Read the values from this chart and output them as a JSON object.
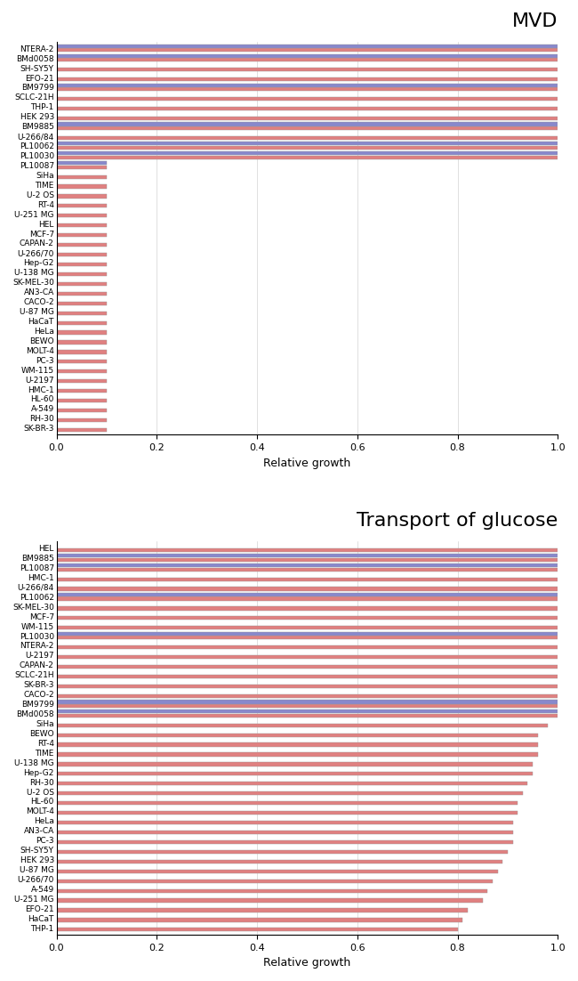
{
  "mvd": {
    "title": "MVD",
    "labels": [
      "NTERA-2",
      "BMd0058",
      "SH-SY5Y",
      "EFO-21",
      "BM9799",
      "SCLC-21H",
      "THP-1",
      "HEK 293",
      "BM9885",
      "U-266/84",
      "PL10062",
      "PL10030",
      "PL10087",
      "SiHa",
      "TIME",
      "U-2 OS",
      "RT-4",
      "U-251 MG",
      "HEL",
      "MCF-7",
      "CAPAN-2",
      "U-266/70",
      "Hep-G2",
      "U-138 MG",
      "SK-MEL-30",
      "AN3-CA",
      "CACO-2",
      "U-87 MG",
      "HaCaT",
      "HeLa",
      "BEWO",
      "MOLT-4",
      "PC-3",
      "WM-115",
      "U-2197",
      "HMC-1",
      "HL-60",
      "A-549",
      "RH-30",
      "SK-BR-3"
    ],
    "cancer_values": [
      1.0,
      1.0,
      1.0,
      1.0,
      1.0,
      1.0,
      1.0,
      1.0,
      1.0,
      1.0,
      1.0,
      1.0,
      0.1,
      0.1,
      0.1,
      0.1,
      0.1,
      0.1,
      0.1,
      0.1,
      0.1,
      0.1,
      0.1,
      0.1,
      0.1,
      0.1,
      0.1,
      0.1,
      0.1,
      0.1,
      0.1,
      0.1,
      0.1,
      0.1,
      0.1,
      0.1,
      0.1,
      0.1,
      0.1,
      0.1
    ],
    "msc_values": [
      1.0,
      1.0,
      null,
      null,
      1.0,
      null,
      null,
      null,
      1.0,
      null,
      1.0,
      1.0,
      0.1,
      null,
      null,
      null,
      null,
      null,
      null,
      null,
      null,
      null,
      null,
      null,
      null,
      null,
      null,
      null,
      null,
      null,
      null,
      null,
      null,
      null,
      null,
      null,
      null,
      null,
      null,
      null
    ]
  },
  "glucose": {
    "title": "Transport of glucose",
    "labels": [
      "HEL",
      "BM9885",
      "PL10087",
      "HMC-1",
      "U-266/84",
      "PL10062",
      "SK-MEL-30",
      "MCF-7",
      "WM-115",
      "PL10030",
      "NTERA-2",
      "U-2197",
      "CAPAN-2",
      "SCLC-21H",
      "SK-BR-3",
      "CACO-2",
      "BM9799",
      "BMd0058",
      "SiHa",
      "BEWO",
      "RT-4",
      "TIME",
      "U-138 MG",
      "Hep-G2",
      "RH-30",
      "U-2 OS",
      "HL-60",
      "MOLT-4",
      "HeLa",
      "AN3-CA",
      "PC-3",
      "SH-SY5Y",
      "HEK 293",
      "U-87 MG",
      "U-266/70",
      "A-549",
      "U-251 MG",
      "EFO-21",
      "HaCaT",
      "THP-1"
    ],
    "cancer_values": [
      1.0,
      1.0,
      1.0,
      1.0,
      1.0,
      1.0,
      1.0,
      1.0,
      1.0,
      1.0,
      1.0,
      1.0,
      1.0,
      1.0,
      1.0,
      1.0,
      1.0,
      1.0,
      0.98,
      0.96,
      0.96,
      0.96,
      0.95,
      0.95,
      0.94,
      0.93,
      0.92,
      0.92,
      0.91,
      0.91,
      0.91,
      0.9,
      0.89,
      0.88,
      0.87,
      0.86,
      0.85,
      0.82,
      0.81,
      0.8
    ],
    "msc_values": [
      null,
      1.0,
      1.0,
      null,
      null,
      1.0,
      null,
      null,
      null,
      1.0,
      null,
      null,
      null,
      null,
      null,
      null,
      1.0,
      1.0,
      null,
      null,
      null,
      null,
      null,
      null,
      null,
      null,
      null,
      null,
      null,
      null,
      null,
      null,
      null,
      null,
      null,
      null,
      null,
      null,
      null,
      null
    ]
  },
  "cancer_color": "#E08080",
  "msc_color": "#8888CC",
  "background_color": "#FFFFFF",
  "xlabel": "Relative growth",
  "title_fontsize": 16,
  "label_fontsize": 6.5,
  "xlabel_fontsize": 9,
  "xtick_fontsize": 8
}
